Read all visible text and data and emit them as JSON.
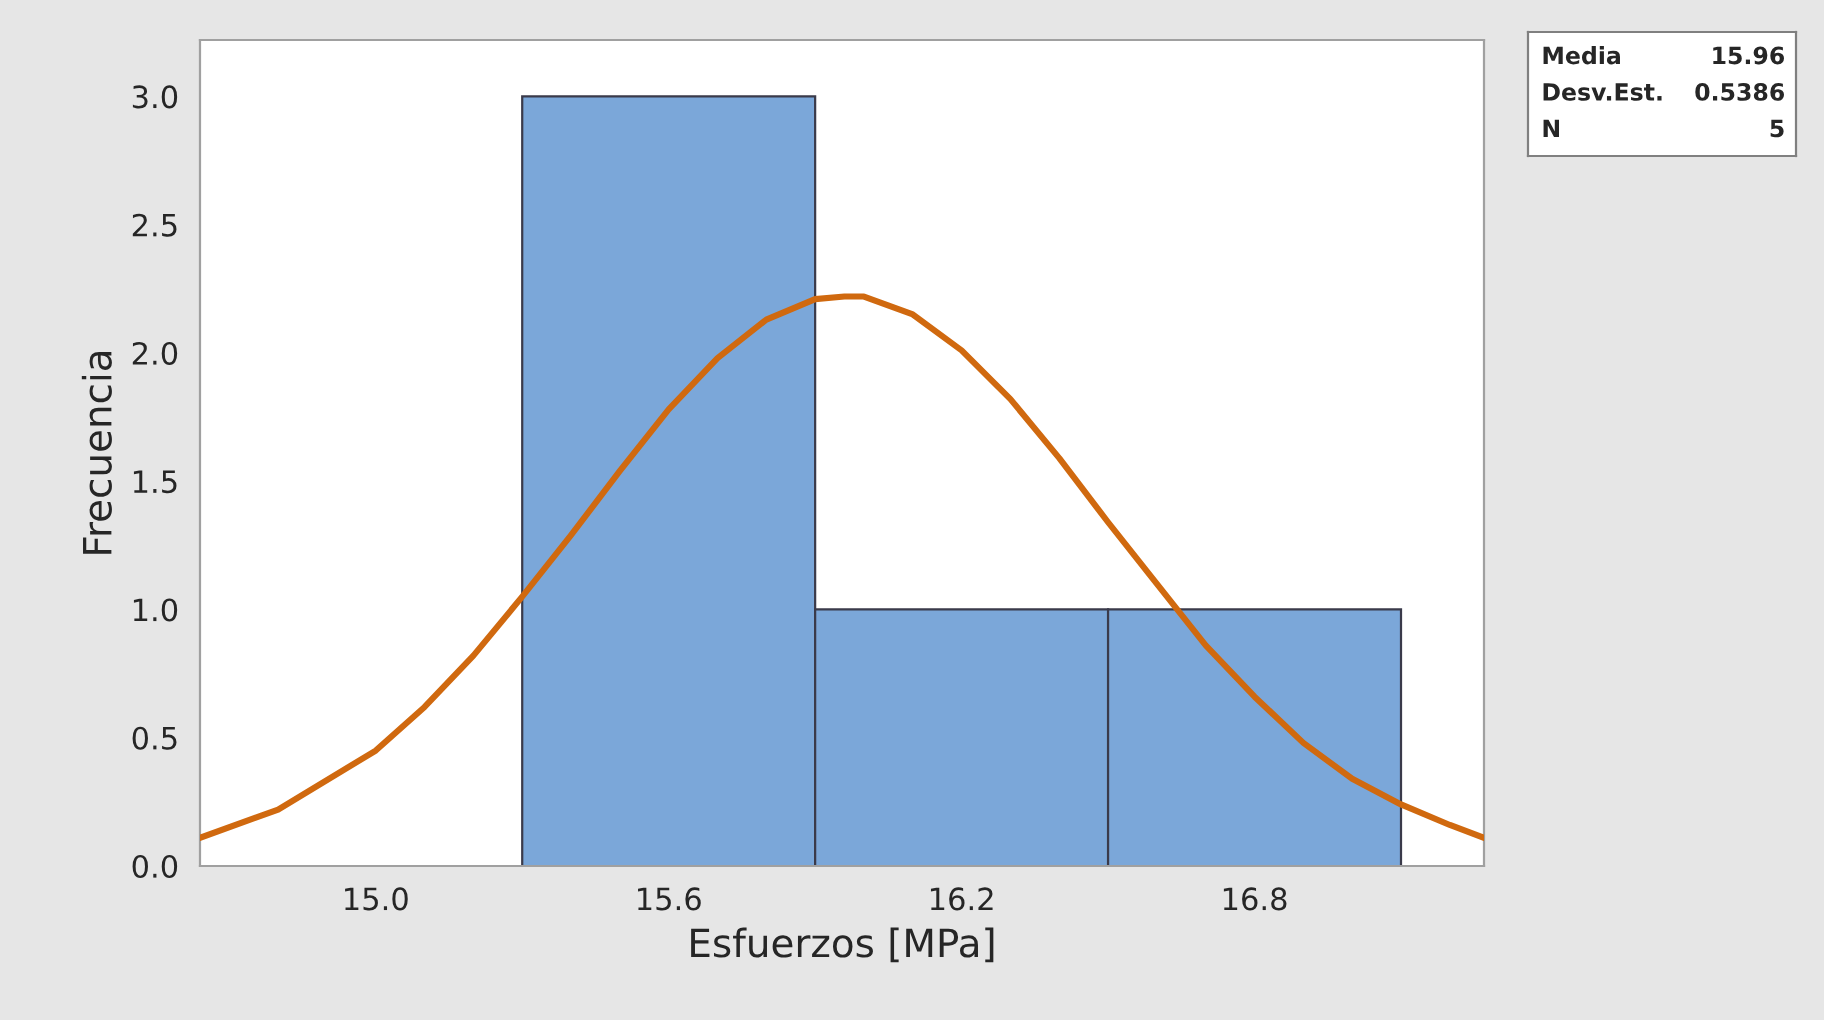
{
  "chart_data": {
    "type": "histogram",
    "xlabel": "Esfuerzos [MPa]",
    "ylabel": "Frecuencia",
    "bins": [
      15.3,
      15.9,
      16.5,
      17.1
    ],
    "values": [
      3,
      1,
      1
    ],
    "color": "#7ba7d9",
    "series": [
      {
        "type": "line",
        "color": "#d0690f",
        "x": [
          14.64,
          14.8,
          15.0,
          15.1,
          15.2,
          15.3,
          15.4,
          15.5,
          15.6,
          15.7,
          15.8,
          15.9,
          15.96,
          16.0,
          16.1,
          16.2,
          16.3,
          16.4,
          16.5,
          16.6,
          16.7,
          16.8,
          16.9,
          17.0,
          17.1,
          17.2,
          17.27
        ],
        "values": [
          0.11,
          0.22,
          0.45,
          0.62,
          0.82,
          1.05,
          1.29,
          1.54,
          1.78,
          1.98,
          2.13,
          2.21,
          2.22,
          2.22,
          2.15,
          2.01,
          1.82,
          1.59,
          1.34,
          1.1,
          0.86,
          0.66,
          0.48,
          0.34,
          0.24,
          0.16,
          0.11
        ]
      }
    ],
    "xlim": [
      14.64,
      17.27
    ],
    "ylim": [
      0,
      3.22
    ],
    "xticks": [
      {
        "value": 15,
        "label": "15.0"
      },
      15.6,
      16.2,
      16.8
    ],
    "yticks": [
      {
        "value": 0,
        "label": "0.0"
      },
      0.5,
      {
        "value": 1,
        "label": "1.0"
      },
      1.5,
      {
        "value": 2,
        "label": "2.0"
      },
      2.5,
      {
        "value": 3,
        "label": "3.0"
      }
    ],
    "grid": false,
    "annotations": [
      "Media 15.96",
      "Desv.Est. 0.5386",
      "N 5"
    ]
  }
}
